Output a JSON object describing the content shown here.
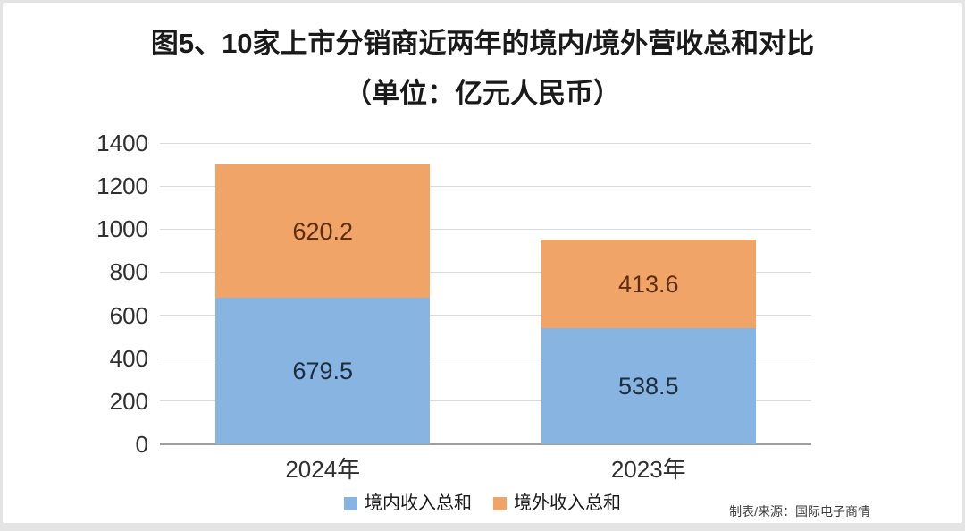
{
  "title": {
    "line1": "图5、10家上市分销商近两年的境内/境外营收总和对比",
    "line2": "（单位：亿元人民币）"
  },
  "source": "制表/来源：国际电子商情",
  "chart_data": {
    "type": "bar",
    "stacked": true,
    "title": "图5、10家上市分销商近两年的境内/境外营收总和对比（单位：亿元人民币）",
    "categories": [
      "2024年",
      "2023年"
    ],
    "series": [
      {
        "name": "境内收入总和",
        "values": [
          679.5,
          538.5
        ],
        "color": "#87b4e1",
        "label_color": "#1e2c3c"
      },
      {
        "name": "境外收入总和",
        "values": [
          620.2,
          413.6
        ],
        "color": "#f0a468",
        "label_color": "#5e2d0e"
      }
    ],
    "totals": [
      1299.7,
      952.1
    ],
    "ylim": [
      0,
      1400
    ],
    "yticks": [
      0,
      200,
      400,
      600,
      800,
      1000,
      1200,
      1400
    ],
    "xlabel": "",
    "ylabel": "",
    "grid": "horizontal",
    "grid_color": "#d9d9d9",
    "axis_color": "#9f9f9f",
    "legend_position": "bottom"
  }
}
